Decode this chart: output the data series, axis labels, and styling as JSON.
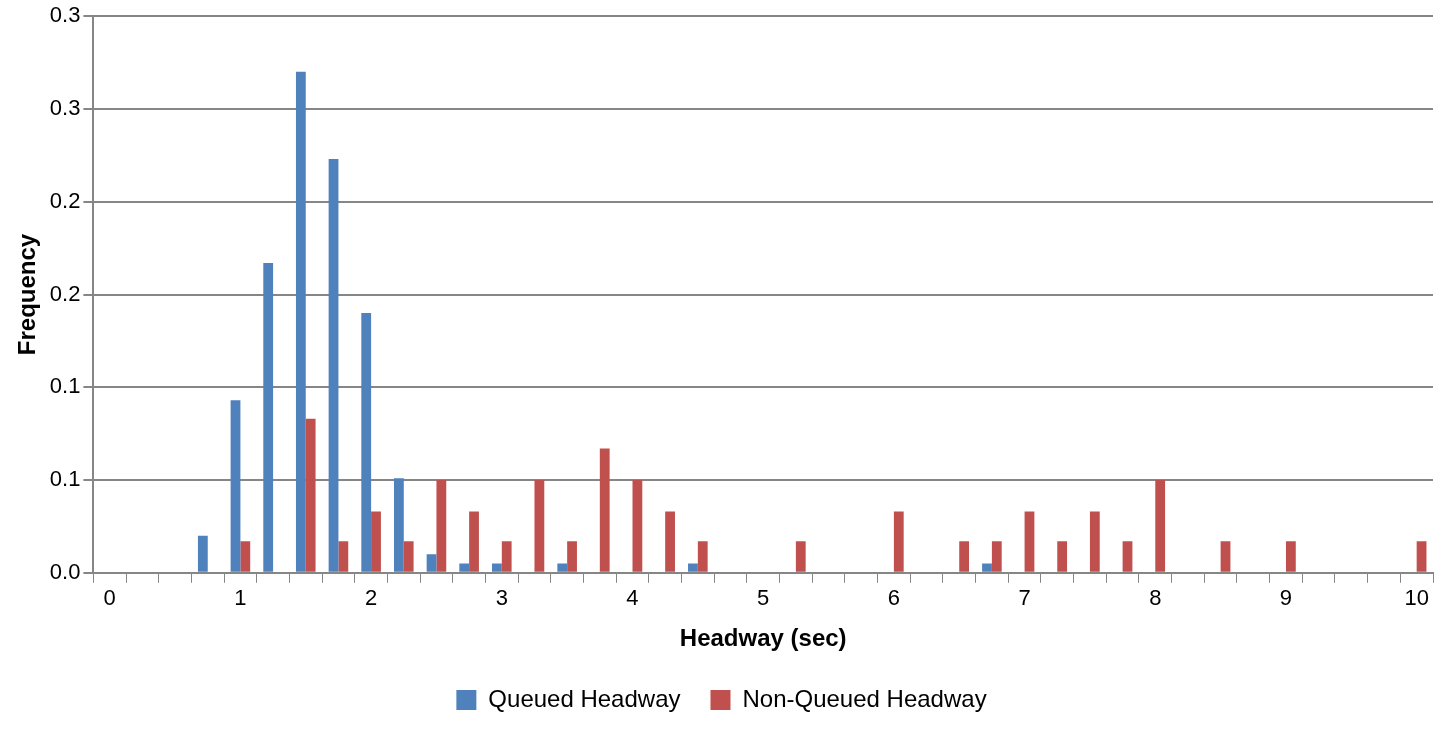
{
  "chart_data": {
    "type": "bar",
    "xlabel": "Headway (sec)",
    "ylabel": "Frequency",
    "categories": [
      "0",
      null,
      null,
      null,
      "1",
      null,
      null,
      null,
      "2",
      null,
      null,
      null,
      "3",
      null,
      null,
      null,
      "4",
      null,
      null,
      null,
      "5",
      null,
      null,
      null,
      "6",
      null,
      null,
      null,
      "7",
      null,
      null,
      null,
      "8",
      null,
      null,
      null,
      "9",
      null,
      null,
      null,
      "10"
    ],
    "series": [
      {
        "name": "Queued Headway",
        "color": "#4f81bd",
        "values": [
          0,
          0,
          0,
          0.02,
          0.093,
          0.167,
          0.27,
          0.223,
          0.14,
          0.051,
          0.01,
          0.005,
          0.005,
          0,
          0.005,
          0,
          0,
          0,
          0.005,
          0,
          0,
          0,
          0,
          0,
          0,
          0,
          0,
          0.005,
          0,
          0,
          0,
          0,
          0,
          0,
          0,
          0,
          0,
          0,
          0,
          0,
          0
        ]
      },
      {
        "name": "Non-Queued Headway",
        "color": "#c0504d",
        "values": [
          0,
          0,
          0,
          0,
          0.017,
          0,
          0.083,
          0.017,
          0.033,
          0.017,
          0.05,
          0.033,
          0.017,
          0.05,
          0.017,
          0.067,
          0.05,
          0.033,
          0.017,
          0,
          0,
          0.017,
          0,
          0,
          0.033,
          0,
          0.017,
          0.017,
          0.033,
          0.017,
          0.033,
          0.017,
          0.05,
          0,
          0.017,
          0,
          0.017,
          0,
          0,
          0,
          0.017
        ]
      }
    ],
    "ylim": [
      0,
      0.3
    ],
    "yticks": [
      {
        "value": 0,
        "label": "0.0"
      },
      {
        "value": 0.05,
        "label": "0.1"
      },
      {
        "value": 0.1,
        "label": "0.1"
      },
      {
        "value": 0.15,
        "label": "0.2"
      },
      {
        "value": 0.2,
        "label": "0.2"
      },
      {
        "value": 0.25,
        "label": "0.3"
      },
      {
        "value": 0.3,
        "label": "0.3"
      }
    ],
    "grid": "y",
    "legend": "bottom"
  }
}
